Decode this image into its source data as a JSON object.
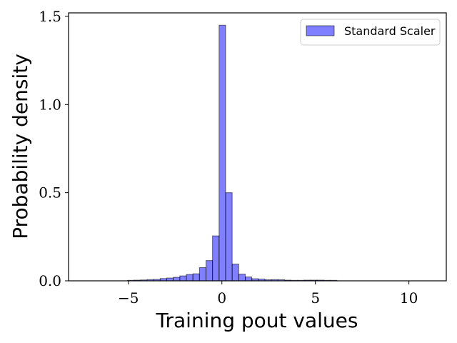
{
  "chart_data": {
    "type": "bar",
    "title": "",
    "xlabel": "Training pout values",
    "ylabel": "Probability density",
    "xlim": [
      -8.2,
      12
    ],
    "ylim": [
      0,
      1.52
    ],
    "x_ticks": [
      {
        "value": -5,
        "label": "−5"
      },
      {
        "value": 0,
        "label": "0"
      },
      {
        "value": 5,
        "label": "5"
      },
      {
        "value": 10,
        "label": "10"
      }
    ],
    "y_ticks": [
      {
        "value": 0,
        "label": "0.0"
      },
      {
        "value": 0.5,
        "label": "0.5"
      },
      {
        "value": 1.0,
        "label": "1.0"
      },
      {
        "value": 1.5,
        "label": "1.5"
      }
    ],
    "grid": false,
    "legend_position": "top-right",
    "series": [
      {
        "name": "Standard Scaler",
        "color": "#0000ff",
        "bin_width": 0.35,
        "bin_starts": [
          -5.05,
          -4.7,
          -4.35,
          -4.0,
          -3.65,
          -3.3,
          -2.95,
          -2.6,
          -2.25,
          -1.9,
          -1.55,
          -1.2,
          -0.85,
          -0.5,
          -0.15,
          0.2,
          0.55,
          0.9,
          1.25,
          1.6,
          1.95,
          2.3,
          2.65,
          3.0,
          3.35,
          3.7,
          4.05,
          4.4,
          4.75,
          5.1,
          5.45,
          5.8
        ],
        "densities": [
          0.003,
          0.004,
          0.005,
          0.007,
          0.008,
          0.013,
          0.016,
          0.02,
          0.028,
          0.036,
          0.04,
          0.075,
          0.115,
          0.255,
          1.45,
          0.5,
          0.095,
          0.038,
          0.022,
          0.012,
          0.01,
          0.006,
          0.007,
          0.006,
          0.004,
          0.003,
          0.003,
          0.004,
          0.004,
          0.004,
          0.003,
          0.003
        ]
      }
    ]
  }
}
